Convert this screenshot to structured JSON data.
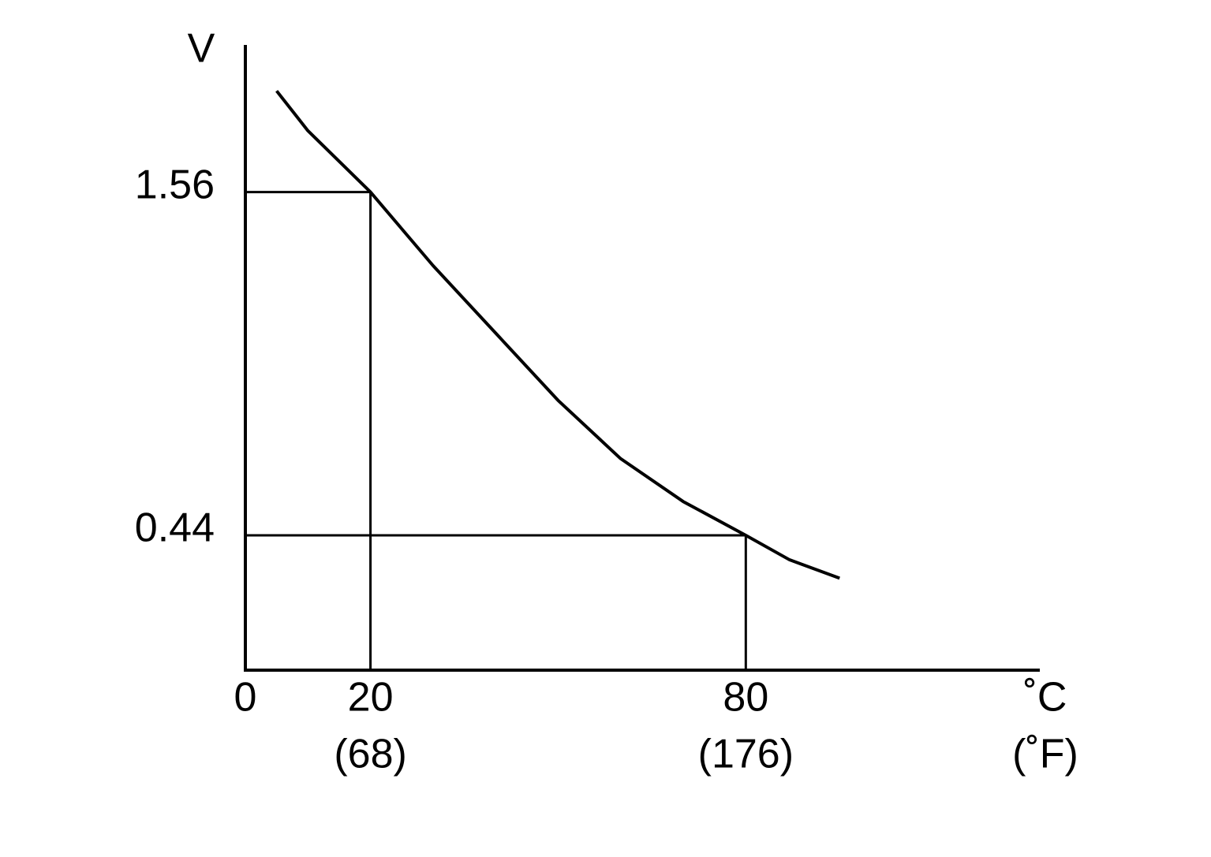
{
  "chart_data": {
    "type": "line",
    "ylabel": "V",
    "xlabel": "˚C",
    "xlabel2": "(˚F)",
    "x": [
      5,
      10,
      20,
      30,
      40,
      50,
      60,
      70,
      80,
      87,
      95
    ],
    "series": [
      {
        "color": "#000000",
        "values": [
          1.89,
          1.76,
          1.56,
          1.32,
          1.1,
          0.88,
          0.69,
          0.55,
          0.44,
          0.36,
          0.3
        ]
      }
    ],
    "xlim": [
      0,
      127
    ],
    "ylim": [
      0,
      2.04
    ],
    "xticks": [
      0,
      20,
      80
    ],
    "xticks_f": [
      {
        "value": 20,
        "label": "(68)"
      },
      {
        "value": 80,
        "label": "(176)"
      }
    ],
    "yticks": [
      0.44,
      1.56
    ],
    "markers": [
      {
        "x": 20,
        "y": 1.56
      },
      {
        "x": 80,
        "y": 0.44
      }
    ]
  }
}
